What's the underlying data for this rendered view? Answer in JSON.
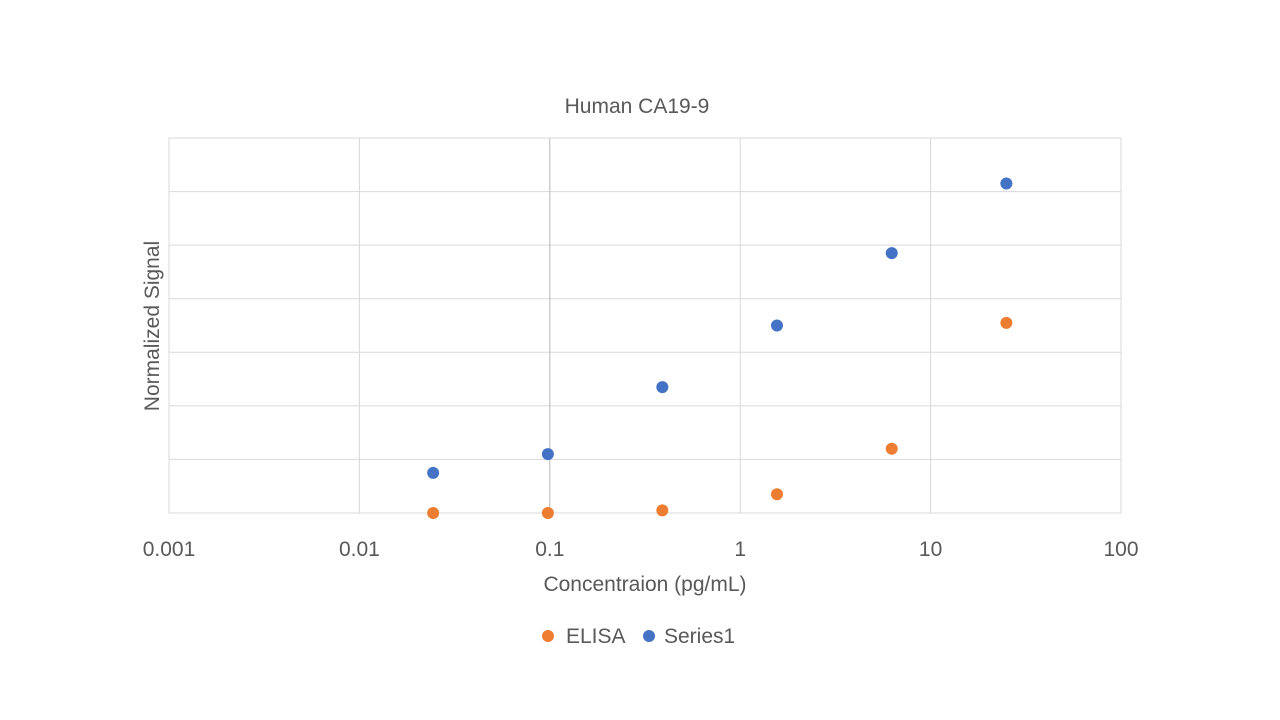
{
  "chart_data": {
    "type": "scatter",
    "title": "Human CA19-9",
    "xlabel": "Concentraion (pg/mL)",
    "ylabel": "Normalized Signal",
    "xscale": "log",
    "xlim": [
      0.001,
      100
    ],
    "ylim": [
      0,
      7
    ],
    "x_ticks": [
      0.001,
      0.01,
      0.1,
      1,
      10,
      100
    ],
    "x_tick_labels": [
      "0.001",
      "0.01",
      "0.1",
      "1",
      "10",
      "100"
    ],
    "y_tick_labels_visible": false,
    "grid": true,
    "legend_position": "bottom",
    "series": [
      {
        "name": "ELISA",
        "color": "#ED7D31",
        "points": [
          {
            "x": 0.0244,
            "y": 0.0
          },
          {
            "x": 0.0977,
            "y": 0.0
          },
          {
            "x": 0.39,
            "y": 0.05
          },
          {
            "x": 1.56,
            "y": 0.35
          },
          {
            "x": 6.25,
            "y": 1.2
          },
          {
            "x": 25,
            "y": 3.55
          }
        ]
      },
      {
        "name": "Series1",
        "color": "#4472C4",
        "points": [
          {
            "x": 0.0244,
            "y": 0.75
          },
          {
            "x": 0.0977,
            "y": 1.1
          },
          {
            "x": 0.39,
            "y": 2.35
          },
          {
            "x": 1.56,
            "y": 3.5
          },
          {
            "x": 6.25,
            "y": 4.85
          },
          {
            "x": 25,
            "y": 6.15
          }
        ]
      }
    ]
  }
}
